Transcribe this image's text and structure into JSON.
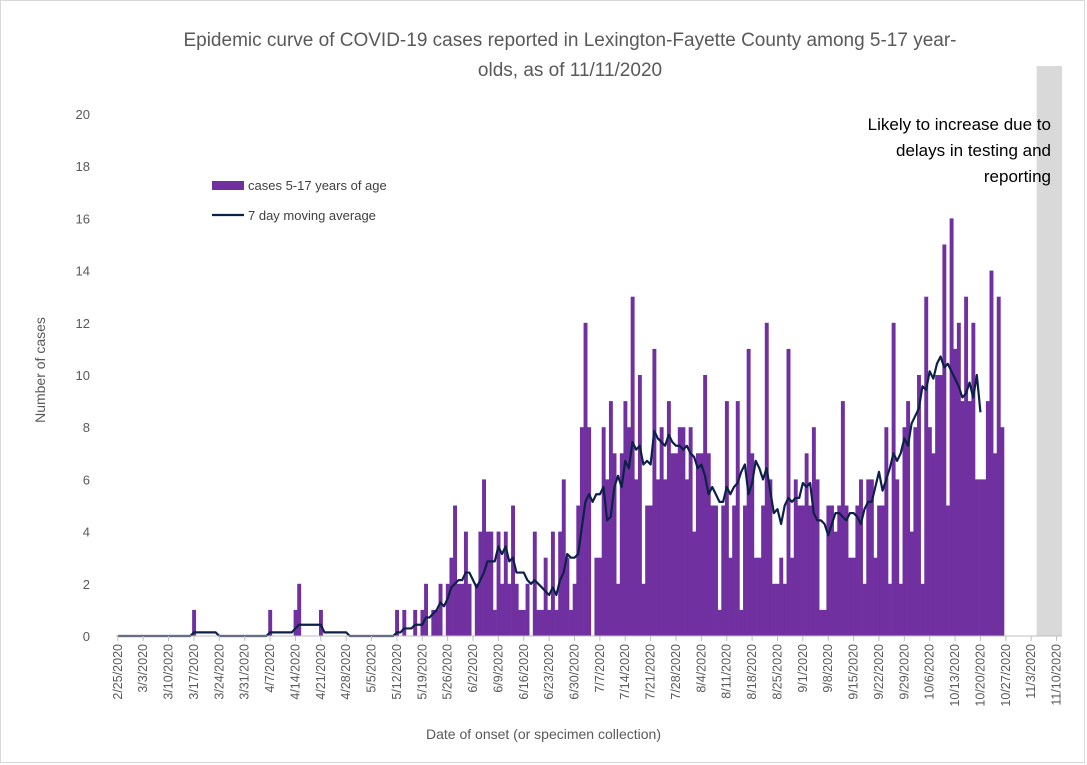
{
  "chart_data": {
    "type": "bar",
    "title_line1": "Epidemic curve of COVID-19 cases reported in Lexington-Fayette County among 5-17 year-",
    "title_line2": "olds, as of 11/11/2020",
    "xlabel": "Date of onset (or specimen collection)",
    "ylabel": "Number of cases",
    "ylim": [
      0,
      20
    ],
    "yticks": [
      "0",
      "2",
      "4",
      "6",
      "8",
      "10",
      "12",
      "14",
      "16",
      "18",
      "20"
    ],
    "grid": false,
    "legend_position": "upper-left",
    "annotation": {
      "line1": "Likely to increase due to",
      "line2": "delays in testing and",
      "line3": "reporting"
    },
    "x_tick_labels": [
      "2/25/2020",
      "3/3/2020",
      "3/10/2020",
      "3/17/2020",
      "3/24/2020",
      "3/31/2020",
      "4/7/2020",
      "4/14/2020",
      "4/21/2020",
      "4/28/2020",
      "5/5/2020",
      "5/12/2020",
      "5/19/2020",
      "5/26/2020",
      "6/2/2020",
      "6/9/2020",
      "6/16/2020",
      "6/23/2020",
      "6/30/2020",
      "7/7/2020",
      "7/14/2020",
      "7/21/2020",
      "7/28/2020",
      "8/4/2020",
      "8/11/2020",
      "8/18/2020",
      "8/25/2020",
      "9/1/2020",
      "9/8/2020",
      "9/15/2020",
      "9/22/2020",
      "9/29/2020",
      "10/6/2020",
      "10/13/2020",
      "10/20/2020",
      "10/27/2020",
      "11/3/2020",
      "11/10/2020"
    ],
    "x_start": "2/25/2020",
    "x_end": "11/11/2020",
    "shaded_region": {
      "from": "11/5/2020",
      "to": "11/11/2020"
    },
    "series": [
      {
        "name": "cases 5-17 years of age",
        "kind": "bar",
        "color": "#7030a0",
        "values": [
          0,
          0,
          0,
          0,
          0,
          0,
          0,
          0,
          0,
          0,
          0,
          0,
          0,
          0,
          0,
          0,
          0,
          0,
          0,
          0,
          0,
          1,
          0,
          0,
          0,
          0,
          0,
          0,
          0,
          0,
          0,
          0,
          0,
          0,
          0,
          0,
          0,
          0,
          0,
          0,
          0,
          0,
          1,
          0,
          0,
          0,
          0,
          0,
          0,
          1,
          2,
          0,
          0,
          0,
          0,
          0,
          1,
          0,
          0,
          0,
          0,
          0,
          0,
          0,
          0,
          0,
          0,
          0,
          0,
          0,
          0,
          0,
          0,
          0,
          0,
          0,
          0,
          1,
          0,
          1,
          0,
          0,
          1,
          0,
          1,
          2,
          0,
          1,
          1,
          2,
          0,
          2,
          3,
          5,
          2,
          2,
          4,
          2,
          0,
          2,
          4,
          6,
          4,
          4,
          1,
          4,
          2,
          4,
          2,
          5,
          2,
          1,
          1,
          2,
          0,
          4,
          1,
          1,
          3,
          1,
          4,
          1,
          4,
          6,
          3,
          1,
          2,
          5,
          8,
          12,
          8,
          0,
          3,
          3,
          8,
          6,
          9,
          7,
          2,
          7,
          9,
          8,
          13,
          6,
          10,
          2,
          5,
          5,
          11,
          6,
          8,
          6,
          9,
          7,
          7,
          8,
          8,
          6,
          8,
          4,
          7,
          7,
          10,
          7,
          5,
          5,
          1,
          5,
          9,
          3,
          5,
          9,
          1,
          5,
          11,
          7,
          3,
          3,
          5,
          12,
          6,
          2,
          2,
          3,
          2,
          11,
          3,
          6,
          5,
          5,
          7,
          5,
          8,
          6,
          1,
          1,
          5,
          5,
          4,
          5,
          9,
          5,
          3,
          3,
          5,
          6,
          2,
          6,
          6,
          3,
          5,
          5,
          8,
          2,
          12,
          6,
          2,
          8,
          9,
          4,
          8,
          10,
          2,
          13,
          8,
          7,
          10,
          10,
          15,
          5,
          16,
          11,
          12,
          9,
          13,
          9,
          12,
          6,
          6,
          6,
          9,
          14,
          7,
          13,
          8
        ]
      },
      {
        "name": "7 day moving average",
        "kind": "line",
        "color": "#0d2148",
        "values": [
          0,
          0,
          0,
          0,
          0,
          0,
          0,
          0,
          0,
          0,
          0,
          0,
          0,
          0,
          0,
          0,
          0,
          0,
          0,
          0,
          0,
          0.14,
          0.14,
          0.14,
          0.14,
          0.14,
          0.14,
          0.14,
          0,
          0,
          0,
          0,
          0,
          0,
          0,
          0,
          0,
          0,
          0,
          0,
          0,
          0,
          0.14,
          0.14,
          0.14,
          0.14,
          0.14,
          0.14,
          0.14,
          0.29,
          0.43,
          0.43,
          0.43,
          0.43,
          0.43,
          0.43,
          0.43,
          0.14,
          0.14,
          0.14,
          0.14,
          0.14,
          0.14,
          0.14,
          0,
          0,
          0,
          0,
          0,
          0,
          0,
          0,
          0,
          0,
          0,
          0,
          0,
          0.14,
          0.14,
          0.29,
          0.29,
          0.29,
          0.43,
          0.43,
          0.43,
          0.71,
          0.71,
          0.86,
          1,
          1.29,
          1.14,
          1.43,
          1.86,
          2,
          2.14,
          2.14,
          2.43,
          2.43,
          2.14,
          1.86,
          2.14,
          2.43,
          2.86,
          2.86,
          2.86,
          3.43,
          3.14,
          3.43,
          2.86,
          3,
          2.43,
          2.43,
          2.43,
          2.14,
          2,
          2.14,
          2,
          1.86,
          1.71,
          1.57,
          1.86,
          1.57,
          2.14,
          2.43,
          3.14,
          3,
          3,
          3.14,
          4.14,
          5.14,
          5.43,
          5.14,
          5.43,
          5.43,
          5.71,
          4.43,
          4.57,
          5.71,
          6.14,
          5.71,
          6.71,
          6.43,
          7.43,
          7.14,
          7.29,
          6.57,
          6.71,
          6.57,
          7.86,
          7.57,
          7.43,
          7.29,
          7.71,
          7.43,
          7.29,
          7.29,
          7.14,
          7.29,
          7,
          6.86,
          6.43,
          6.57,
          6.14,
          5.43,
          5.71,
          5.43,
          5.14,
          5.14,
          5.71,
          5.43,
          5.71,
          5.86,
          6.29,
          6.57,
          5.43,
          5.86,
          6.71,
          6.43,
          6,
          6.43,
          5.57,
          4.71,
          4.86,
          4.29,
          5,
          5.29,
          5.14,
          5.29,
          5.29,
          5.86,
          5.71,
          5.86,
          4.71,
          4.43,
          4.43,
          4.29,
          3.86,
          4.29,
          4.71,
          4.71,
          4.57,
          4.43,
          4.71,
          4.71,
          4.57,
          4.29,
          4.86,
          5.14,
          5.14,
          5.71,
          6.29,
          5.57,
          6,
          6.43,
          7,
          6.71,
          7,
          7.57,
          7.29,
          8.14,
          8.43,
          8.71,
          9.57,
          9.43,
          10.14,
          9.86,
          10.43,
          10.71,
          10.29,
          10.43,
          10.14,
          9.86,
          9.57,
          9.14,
          9.29,
          9.71,
          9.14,
          10,
          8.57
        ]
      }
    ]
  }
}
